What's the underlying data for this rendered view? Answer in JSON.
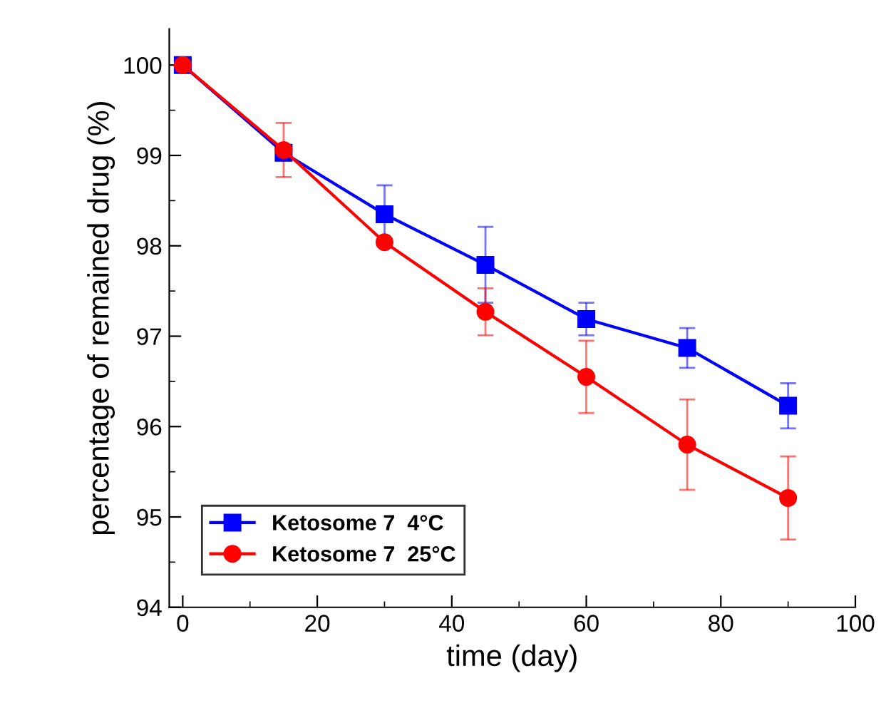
{
  "chart_data": {
    "type": "line",
    "xlabel": "time (day)",
    "ylabel": "percentage of remained drug (%)",
    "x": [
      0,
      15,
      30,
      45,
      60,
      75,
      90
    ],
    "series": [
      {
        "name": "Ketosome 7  4°C",
        "color": "#0000ff",
        "marker": "square",
        "values": [
          100,
          99.03,
          98.35,
          97.79,
          97.19,
          96.87,
          96.23
        ],
        "errors": [
          null,
          null,
          0.32,
          0.42,
          0.18,
          0.22,
          0.25
        ]
      },
      {
        "name": "Ketosome 7  25°C",
        "color": "#ff0000",
        "marker": "circle",
        "values": [
          100,
          99.06,
          98.04,
          97.27,
          96.55,
          95.8,
          95.21
        ],
        "errors": [
          null,
          0.3,
          null,
          0.26,
          0.4,
          0.5,
          0.46
        ]
      }
    ],
    "xlim": [
      -2,
      100
    ],
    "xticks": [
      0,
      20,
      40,
      60,
      80,
      100
    ],
    "ylim": [
      94,
      100.4
    ],
    "yticks": [
      94,
      95,
      96,
      97,
      98,
      99,
      100
    ],
    "grid": false,
    "legend": "bottom left",
    "line_style": "solid"
  }
}
